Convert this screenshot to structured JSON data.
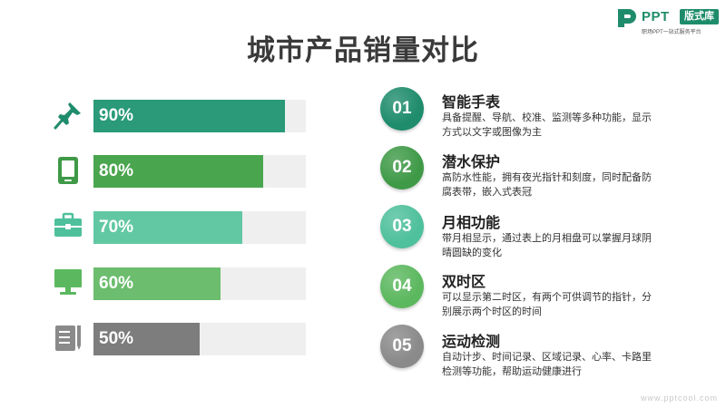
{
  "title": "城市产品销量对比",
  "logo": {
    "brand": "PPT",
    "badge": "版式库",
    "subtitle": "职场PPT一站式服务平台"
  },
  "chart_data": {
    "type": "bar",
    "orientation": "horizontal",
    "title": "城市产品销量对比",
    "values": [
      90,
      80,
      70,
      60,
      50
    ],
    "labels": [
      "90%",
      "80%",
      "70%",
      "60%",
      "50%"
    ],
    "xlim": [
      0,
      100
    ],
    "colors": [
      "#2a9a78",
      "#4aa54f",
      "#62c8a4",
      "#6cbd6e",
      "#7d7d7d"
    ],
    "icons": [
      "pushpin-icon",
      "tablet-icon",
      "briefcase-icon",
      "monitor-icon",
      "notepad-pencil-icon"
    ]
  },
  "features": [
    {
      "number": "01",
      "title": "智能手表",
      "desc": "具备提醒、导航、校准、监测等多种功能，显示方式以文字或图像为主",
      "color": "#1f8c6c"
    },
    {
      "number": "02",
      "title": "潜水保护",
      "desc": "高防水性能，拥有夜光指针和刻度，同时配备防腐表带，嵌入式表冠",
      "color": "#3f9a48"
    },
    {
      "number": "03",
      "title": "月相功能",
      "desc": "带月相显示，通过表上的月相盘可以掌握月球阴晴圆缺的变化",
      "color": "#4fc09c"
    },
    {
      "number": "04",
      "title": "双时区",
      "desc": "可以显示第二时区，有两个可供调节的指针，分别展示两个时区的时间",
      "color": "#5cb85f"
    },
    {
      "number": "05",
      "title": "运动检测",
      "desc": "自动计步、时间记录、区域记录、心率、卡路里检测等功能，帮助运动健康进行",
      "color": "#8a8a8a"
    }
  ],
  "watermark": "www.pptcool.com"
}
